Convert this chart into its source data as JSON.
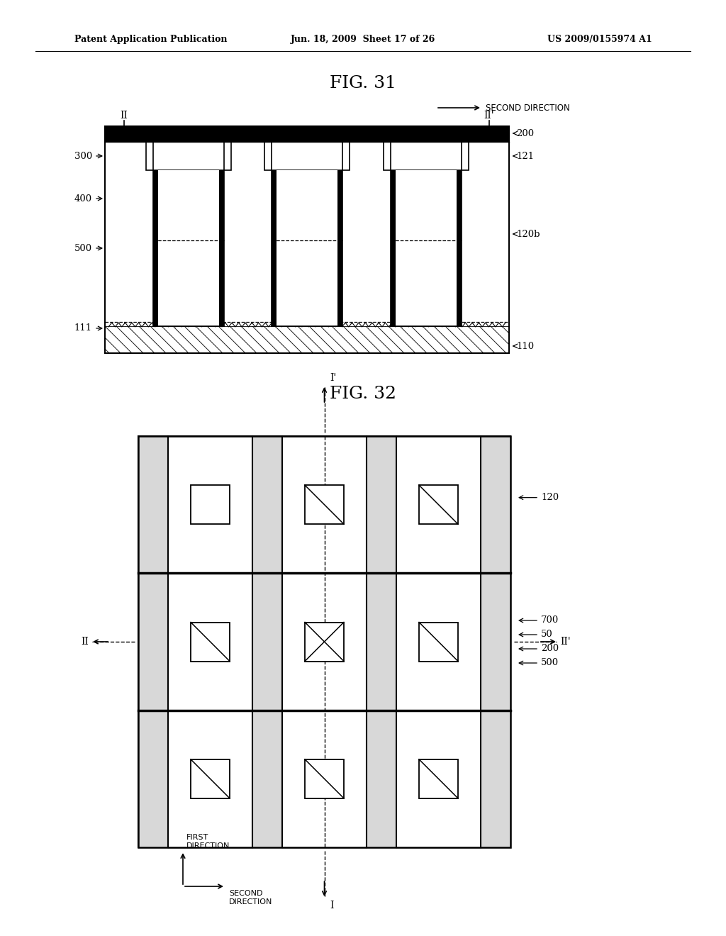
{
  "bg_color": "#ffffff",
  "header_text_left": "Patent Application Publication",
  "header_text_mid": "Jun. 18, 2009  Sheet 17 of 26",
  "header_text_right": "US 2009/0155974 A1",
  "fig31_title": "FIG. 31",
  "fig32_title": "FIG. 32"
}
